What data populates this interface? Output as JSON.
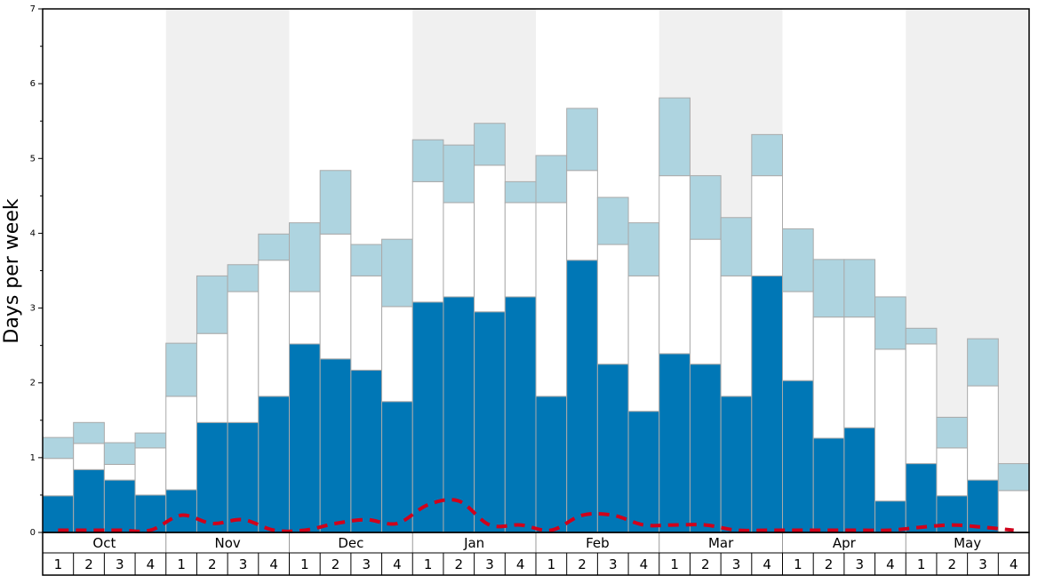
{
  "chart_data": {
    "type": "bar",
    "stacked": true,
    "y_label": "Days per week",
    "months": [
      "Oct",
      "Nov",
      "Dec",
      "Jan",
      "Feb",
      "Mar",
      "Apr",
      "May"
    ],
    "categories": [
      "1",
      "2",
      "3",
      "4",
      "1",
      "2",
      "3",
      "4",
      "1",
      "2",
      "3",
      "4",
      "1",
      "2",
      "3",
      "4",
      "1",
      "2",
      "3",
      "4",
      "1",
      "2",
      "3",
      "4",
      "1",
      "2",
      "3",
      "4",
      "1",
      "2",
      "3",
      "4"
    ],
    "ylim": [
      0,
      7
    ],
    "yticks": [
      0,
      1,
      2,
      3,
      4,
      5,
      6,
      7
    ],
    "yminor": [
      0.5,
      1.5,
      2.5,
      3.5,
      4.5,
      5.5,
      6.5
    ],
    "shade_color": "#f0f0f0",
    "series": [
      {
        "color": "#0077b6",
        "values": [
          0.49,
          0.84,
          0.7,
          0.5,
          0.57,
          1.47,
          1.47,
          1.82,
          2.52,
          2.32,
          2.17,
          1.75,
          3.08,
          3.15,
          2.95,
          3.15,
          1.82,
          3.64,
          2.25,
          1.62,
          2.39,
          2.25,
          1.82,
          3.43,
          2.03,
          1.26,
          1.4,
          0.42,
          0.92,
          0.49,
          0.7,
          0
        ]
      },
      {
        "color": "#ffffff",
        "values": [
          0.5,
          0.35,
          0.21,
          0.63,
          1.25,
          1.19,
          1.75,
          1.82,
          0.7,
          1.67,
          1.26,
          1.27,
          1.61,
          1.26,
          1.96,
          1.26,
          2.59,
          1.2,
          1.6,
          1.81,
          2.38,
          1.67,
          1.61,
          1.34,
          1.19,
          1.62,
          1.48,
          2.03,
          1.6,
          0.64,
          1.26,
          0.56
        ]
      },
      {
        "color": "#aed4e0",
        "values": [
          0.28,
          0.28,
          0.29,
          0.2,
          0.71,
          0.77,
          0.36,
          0.35,
          0.92,
          0.85,
          0.42,
          0.9,
          0.56,
          0.77,
          0.56,
          0.28,
          0.63,
          0.83,
          0.63,
          0.71,
          1.04,
          0.85,
          0.78,
          0.55,
          0.84,
          0.77,
          0.77,
          0.7,
          0.21,
          0.41,
          0.63,
          0.36
        ]
      }
    ],
    "line_series": {
      "color": "#d0021b",
      "values": [
        0.03,
        0.03,
        0.03,
        0.03,
        0.23,
        0.12,
        0.17,
        0.03,
        0.03,
        0.12,
        0.17,
        0.12,
        0.37,
        0.42,
        0.1,
        0.1,
        0.03,
        0.23,
        0.23,
        0.1,
        0.1,
        0.1,
        0.03,
        0.03,
        0.03,
        0.03,
        0.03,
        0.03,
        0.07,
        0.1,
        0.07,
        0.03
      ]
    }
  }
}
